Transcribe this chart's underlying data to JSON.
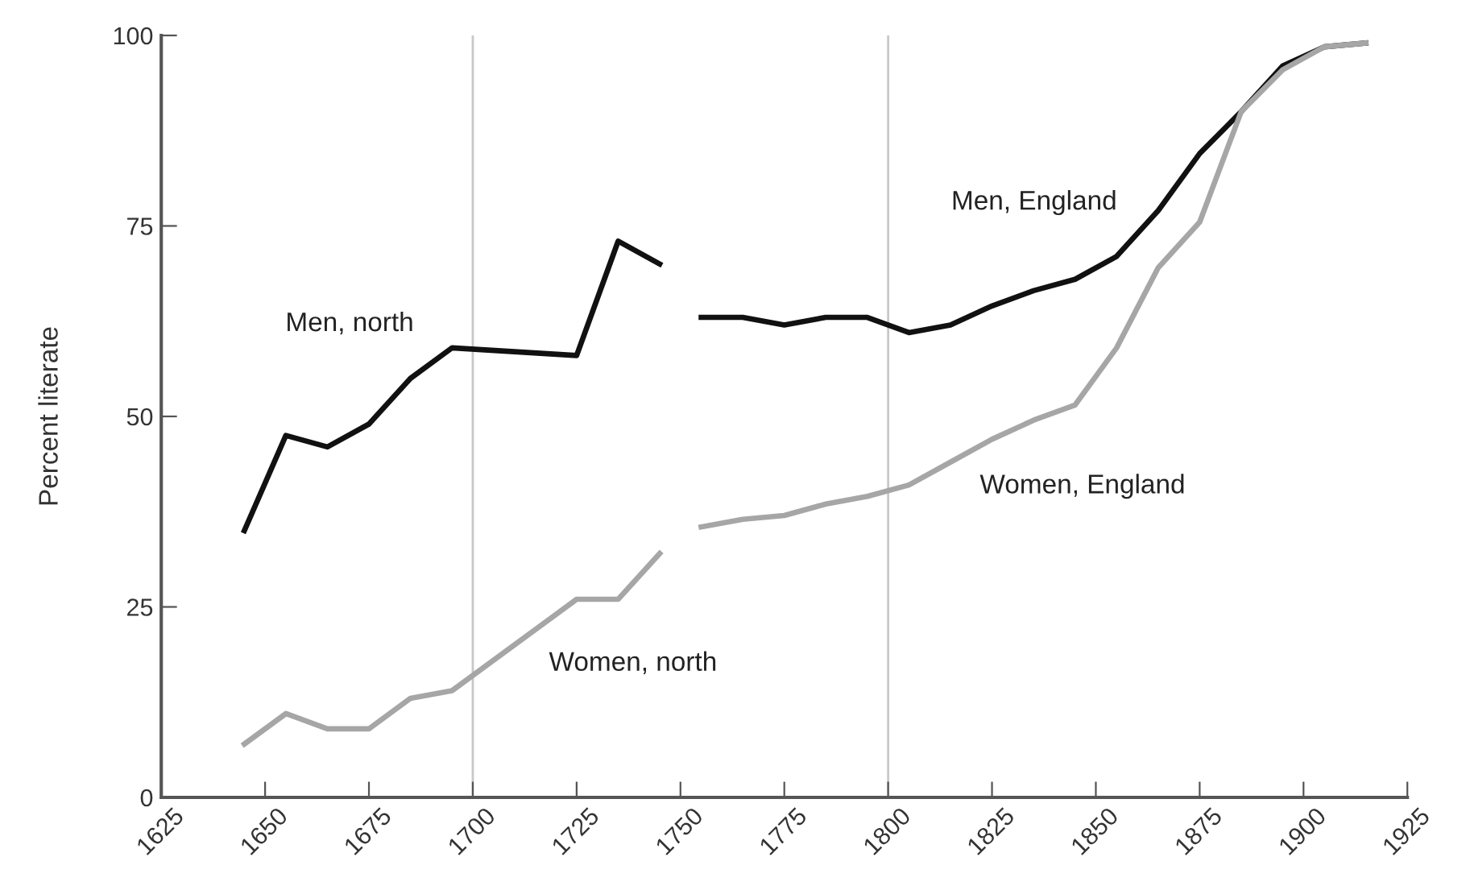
{
  "chart_data": {
    "type": "line",
    "ylabel": "Percent literate",
    "xlim": [
      1625,
      1925
    ],
    "xticks": [
      1625,
      1650,
      1675,
      1700,
      1725,
      1750,
      1775,
      1800,
      1825,
      1850,
      1875,
      1900,
      1925
    ],
    "ylim": [
      0,
      100
    ],
    "yticks": [
      0,
      25,
      50,
      75,
      100
    ],
    "grid": false,
    "legend": false,
    "marker": "none",
    "line_style": "solid",
    "series": [
      {
        "name": "Men, north",
        "color": "#111111",
        "x": [
          1645,
          1655,
          1665,
          1675,
          1685,
          1695,
          1725,
          1735,
          1745
        ],
        "values": [
          35,
          47.5,
          46,
          49,
          55,
          59,
          58,
          73,
          70
        ]
      },
      {
        "name": "Women, north",
        "color": "#a6a6a6",
        "x": [
          1645,
          1655,
          1665,
          1675,
          1685,
          1695,
          1725,
          1735,
          1745
        ],
        "values": [
          7,
          11,
          9,
          9,
          13,
          14,
          26,
          26,
          32
        ]
      },
      {
        "name": "Men, England",
        "color": "#111111",
        "x": [
          1755,
          1765,
          1775,
          1785,
          1795,
          1805,
          1815,
          1825,
          1835,
          1845,
          1855,
          1865,
          1875,
          1885,
          1895,
          1905,
          1915
        ],
        "values": [
          63,
          63,
          62,
          63,
          63,
          61,
          62,
          64.5,
          66.5,
          68,
          71,
          77,
          84.5,
          90,
          96,
          98.5,
          99
        ]
      },
      {
        "name": "Women, England",
        "color": "#a6a6a6",
        "x": [
          1755,
          1765,
          1775,
          1785,
          1795,
          1805,
          1815,
          1825,
          1835,
          1845,
          1855,
          1865,
          1875,
          1885,
          1895,
          1905,
          1915
        ],
        "values": [
          35.5,
          36.5,
          37,
          38.5,
          39.5,
          41,
          44,
          47,
          49.5,
          51.5,
          59,
          69.5,
          75.5,
          90,
          95.5,
          98.5,
          99
        ]
      }
    ],
    "ref_lines": [
      {
        "axis": "x",
        "value": 1700,
        "color": "#c8c8c8"
      },
      {
        "axis": "x",
        "value": 1800,
        "color": "#c8c8c8"
      }
    ]
  }
}
